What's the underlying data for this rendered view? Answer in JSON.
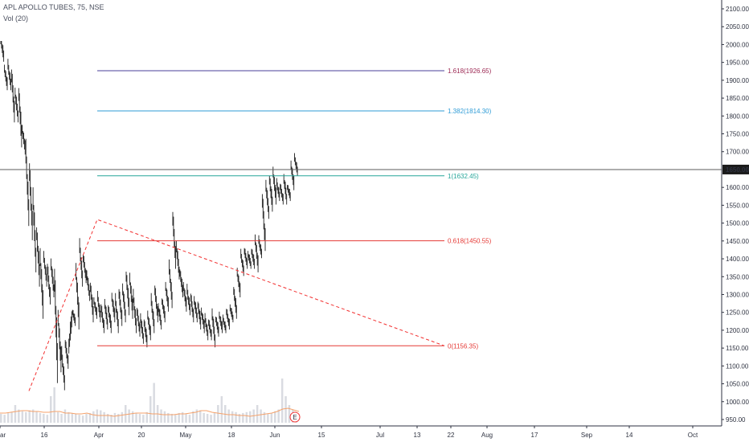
{
  "header": {
    "symbol_line": "APL APOLLO TUBES, 75, NSE",
    "volume_line": "Vol (20)"
  },
  "colors": {
    "candle": "#1f1f1f",
    "volume_bar": "#d9dbe1",
    "volume_ma": "#f5a26b",
    "pattern_dash": "#f23030",
    "fib_red": "#e53935",
    "fib_teal": "#26a69a",
    "fib_blue": "#2e9bd6",
    "fib_purple": "#4a3f9a",
    "fib_label_purple": "#9c2752",
    "price_line": "#5b5b5b",
    "price_tag_bg": "#1b1b1b"
  },
  "chart_data": {
    "type": "candlestick",
    "symbol": "APL APOLLO TUBES",
    "interval": "75",
    "exchange": "NSE",
    "y_axis": {
      "range": [
        940,
        2115
      ],
      "ticks": [
        "950.00",
        "1000.00",
        "1050.00",
        "1100.00",
        "1150.00",
        "1200.00",
        "1250.00",
        "1300.00",
        "1350.00",
        "1400.00",
        "1450.00",
        "1500.00",
        "1550.00",
        "1600.00",
        "1650.00",
        "1700.00",
        "1750.00",
        "1800.00",
        "1850.00",
        "1900.00",
        "1950.00",
        "2000.00",
        "2050.00",
        "2100.00"
      ]
    },
    "x_axis_labels": [
      "ar",
      "16",
      "Apr",
      "20",
      "May",
      "18",
      "Jun",
      "15",
      "Jul",
      "13",
      "22",
      "Aug",
      "17",
      "Sep",
      "14",
      "Oct"
    ],
    "current_price": "1650.00",
    "fib_levels": [
      {
        "ratio": 1.618,
        "price": 1926.65,
        "label": "1.618(1926.65)",
        "color": "#4a3f9a",
        "text_color": "#9c2752"
      },
      {
        "ratio": 1.382,
        "price": 1814.3,
        "label": "1.382(1814.30)",
        "color": "#2e9bd6",
        "text_color": "#2e9bd6"
      },
      {
        "ratio": 1,
        "price": 1632.45,
        "label": "1(1632.45)",
        "color": "#26a69a",
        "text_color": "#26a69a"
      },
      {
        "ratio": 0.618,
        "price": 1450.55,
        "label": "0.618(1450.55)",
        "color": "#e53935",
        "text_color": "#e53935"
      },
      {
        "ratio": 0,
        "price": 1156.35,
        "label": "0(1156.35)",
        "color": "#e53935",
        "text_color": "#e53935"
      }
    ],
    "pattern_points": [
      {
        "price": 1030,
        "time": "Mar 13"
      },
      {
        "price": 1510,
        "time": "Apr 1"
      },
      {
        "price": 1156.35,
        "time": "Jun 22"
      }
    ],
    "event_marker": "E",
    "price_path": [
      [
        2010,
        1960
      ],
      [
        1930,
        1880
      ],
      [
        1940,
        1880
      ],
      [
        1910,
        1790
      ],
      [
        1860,
        1790
      ],
      [
        1860,
        1720
      ],
      [
        1760,
        1700
      ],
      [
        1690,
        1500
      ],
      [
        1640,
        1460
      ],
      [
        1560,
        1370
      ],
      [
        1470,
        1330
      ],
      [
        1400,
        1240
      ],
      [
        1400,
        1330
      ],
      [
        1370,
        1280
      ],
      [
        1380,
        1300
      ],
      [
        1340,
        1060
      ],
      [
        1230,
        1090
      ],
      [
        1130,
        1040
      ],
      [
        1160,
        1100
      ],
      [
        1150,
        1260
      ],
      [
        1250,
        1220
      ],
      [
        1360,
        1210
      ],
      [
        1430,
        1330
      ],
      [
        1400,
        1340
      ],
      [
        1350,
        1290
      ],
      [
        1320,
        1230
      ],
      [
        1280,
        1240
      ],
      [
        1290,
        1230
      ],
      [
        1260,
        1200
      ],
      [
        1270,
        1210
      ],
      [
        1260,
        1200
      ],
      [
        1290,
        1230
      ],
      [
        1280,
        1200
      ],
      [
        1300,
        1220
      ],
      [
        1310,
        1230
      ],
      [
        1350,
        1250
      ],
      [
        1340,
        1240
      ],
      [
        1290,
        1200
      ],
      [
        1250,
        1190
      ],
      [
        1230,
        1170
      ],
      [
        1220,
        1160
      ],
      [
        1240,
        1180
      ],
      [
        1280,
        1200
      ],
      [
        1310,
        1230
      ],
      [
        1260,
        1210
      ],
      [
        1280,
        1230
      ],
      [
        1320,
        1260
      ],
      [
        1370,
        1270
      ],
      [
        1510,
        1380
      ],
      [
        1430,
        1350
      ],
      [
        1360,
        1300
      ],
      [
        1320,
        1260
      ],
      [
        1310,
        1250
      ],
      [
        1290,
        1230
      ],
      [
        1280,
        1230
      ],
      [
        1270,
        1210
      ],
      [
        1250,
        1200
      ],
      [
        1230,
        1180
      ],
      [
        1220,
        1180
      ],
      [
        1240,
        1160
      ],
      [
        1230,
        1190
      ],
      [
        1240,
        1200
      ],
      [
        1230,
        1200
      ],
      [
        1250,
        1210
      ],
      [
        1260,
        1230
      ],
      [
        1310,
        1240
      ],
      [
        1360,
        1300
      ],
      [
        1410,
        1360
      ],
      [
        1420,
        1380
      ],
      [
        1410,
        1380
      ],
      [
        1420,
        1380
      ],
      [
        1450,
        1370
      ],
      [
        1450,
        1410
      ],
      [
        1560,
        1430
      ],
      [
        1600,
        1520
      ],
      [
        1620,
        1540
      ],
      [
        1640,
        1560
      ],
      [
        1610,
        1570
      ],
      [
        1600,
        1560
      ],
      [
        1620,
        1560
      ],
      [
        1600,
        1570
      ],
      [
        1660,
        1600
      ],
      [
        1680,
        1640
      ]
    ],
    "volume": {
      "ma_path": [
        12,
        12,
        13,
        14,
        15,
        15,
        14,
        14,
        13,
        13,
        14,
        14,
        12,
        12,
        11,
        11,
        12,
        10,
        9,
        9,
        9,
        8,
        9,
        10,
        11,
        12,
        12,
        12,
        11,
        11,
        10,
        10,
        10,
        11,
        11,
        12,
        13,
        15,
        15,
        13,
        12,
        11,
        10,
        10,
        9,
        9,
        8,
        9,
        10,
        11,
        12,
        14,
        17,
        18,
        16,
        14
      ],
      "bar_heights": [
        20,
        18,
        22,
        25,
        40,
        30,
        26,
        24,
        28,
        30,
        26,
        22,
        20,
        18,
        60,
        80,
        24,
        20,
        30,
        24,
        22,
        20,
        18,
        16,
        20,
        22,
        26,
        30,
        28,
        24,
        20,
        18,
        22,
        20,
        24,
        40,
        30,
        26,
        22,
        20,
        18,
        24,
        60,
        90,
        40,
        30,
        26,
        22,
        20,
        18,
        22,
        24,
        20,
        18,
        26,
        30,
        28,
        22,
        20,
        18,
        22,
        40,
        60,
        40,
        30,
        26,
        24,
        20,
        22,
        24,
        26,
        30,
        40,
        30,
        24,
        20,
        22,
        26,
        30,
        100,
        60,
        40,
        30,
        24
      ]
    }
  }
}
